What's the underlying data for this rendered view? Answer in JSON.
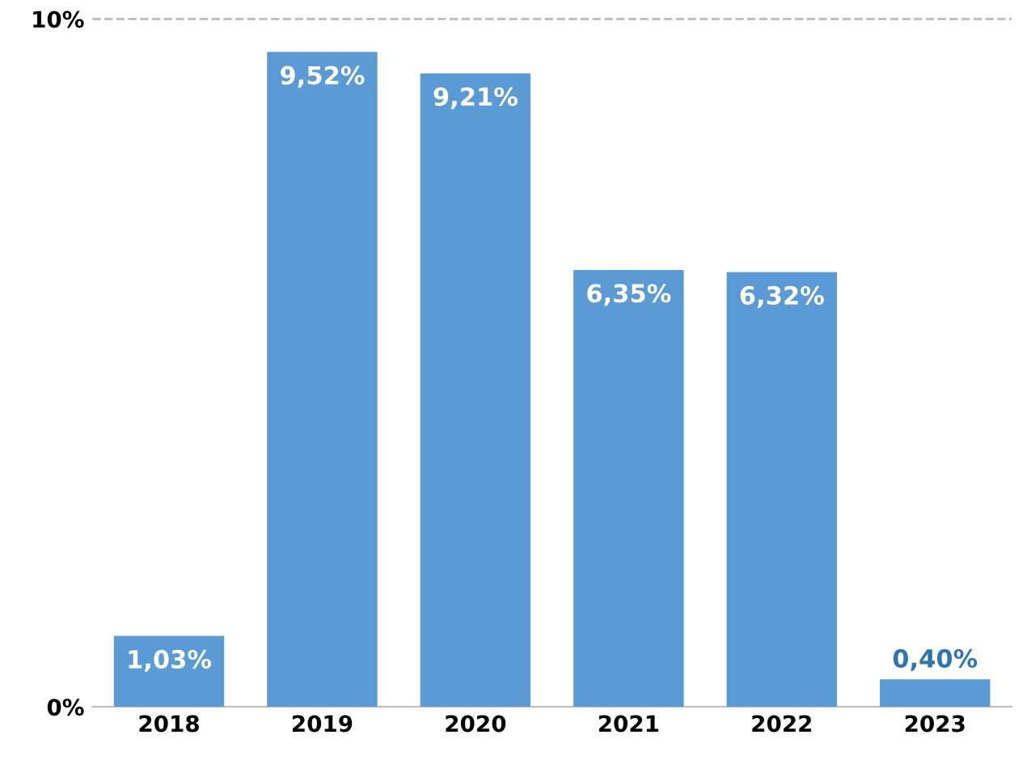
{
  "chart_data": {
    "type": "bar",
    "categories": [
      "2018",
      "2019",
      "2020",
      "2021",
      "2022",
      "2023"
    ],
    "values": [
      1.03,
      9.52,
      9.21,
      6.35,
      6.32,
      0.4
    ],
    "value_labels": [
      "1,03%",
      "9,52%",
      "9,21%",
      "6,35%",
      "6,32%",
      "0,40%"
    ],
    "color": "#5b9bd5",
    "ylim": [
      0,
      10
    ],
    "yticks": [
      {
        "value": 0,
        "label": "0%"
      },
      {
        "value": 10,
        "label": "10%"
      }
    ],
    "ref_lines": [
      {
        "axis": "y",
        "value": 10,
        "line_style": "dashed",
        "color": "#c0c0c0"
      }
    ]
  }
}
